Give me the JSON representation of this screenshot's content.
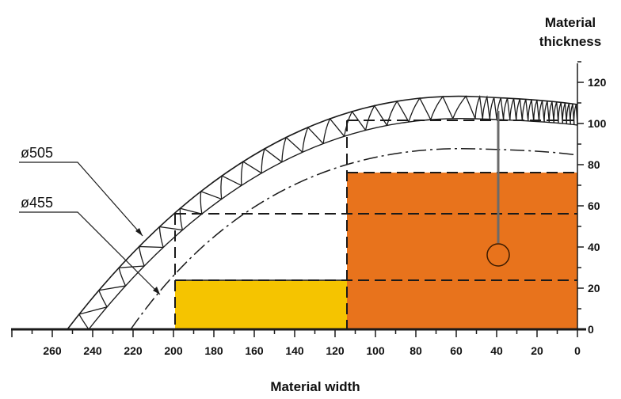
{
  "y_axis": {
    "title_line1": "Material",
    "title_line2": "thickness",
    "ticks": [
      "0",
      "20",
      "40",
      "60",
      "80",
      "100",
      "120"
    ]
  },
  "x_axis": {
    "title": "Material width",
    "ticks": [
      "260",
      "240",
      "220",
      "200",
      "180",
      "160",
      "140",
      "120",
      "100",
      "80",
      "60",
      "40",
      "20",
      "0"
    ]
  },
  "labels": {
    "outer_blade": "ø505",
    "inner_blade": "ø455"
  },
  "colors": {
    "yellow_region": "#f5c400",
    "orange_region": "#e8731c",
    "line": "#1a1a1a"
  },
  "chart_data": {
    "type": "area",
    "x_axis_reversed": true,
    "xlim": [
      265,
      0
    ],
    "ylim": [
      0,
      130
    ],
    "regions": [
      {
        "color": "yellow",
        "x_range": [
          115,
          200
        ],
        "y_range": [
          0,
          25
        ]
      },
      {
        "color": "orange",
        "x_range": [
          0,
          115
        ],
        "y_range": [
          0,
          78
        ]
      }
    ],
    "dashed_levels": [
      25,
      58,
      78,
      104
    ],
    "vertical_dashed": [
      200,
      115
    ],
    "blades": [
      "ø505",
      "ø455"
    ]
  }
}
